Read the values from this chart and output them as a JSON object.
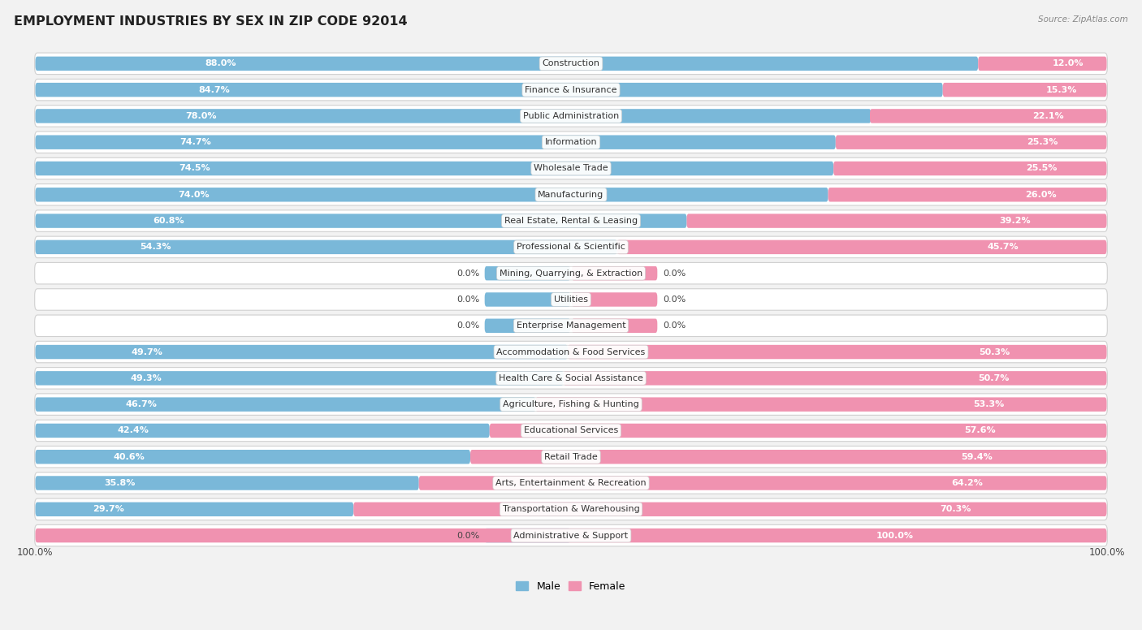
{
  "title": "EMPLOYMENT INDUSTRIES BY SEX IN ZIP CODE 92014",
  "source": "Source: ZipAtlas.com",
  "male_color": "#7ab8d9",
  "female_color": "#f092b0",
  "bg_color": "#f2f2f2",
  "row_bg": "#ffffff",
  "row_border": "#d0d0d0",
  "categories": [
    "Construction",
    "Finance & Insurance",
    "Public Administration",
    "Information",
    "Wholesale Trade",
    "Manufacturing",
    "Real Estate, Rental & Leasing",
    "Professional & Scientific",
    "Mining, Quarrying, & Extraction",
    "Utilities",
    "Enterprise Management",
    "Accommodation & Food Services",
    "Health Care & Social Assistance",
    "Agriculture, Fishing & Hunting",
    "Educational Services",
    "Retail Trade",
    "Arts, Entertainment & Recreation",
    "Transportation & Warehousing",
    "Administrative & Support"
  ],
  "male_pct": [
    88.0,
    84.7,
    78.0,
    74.7,
    74.5,
    74.0,
    60.8,
    54.3,
    0.0,
    0.0,
    0.0,
    49.7,
    49.3,
    46.7,
    42.4,
    40.6,
    35.8,
    29.7,
    0.0
  ],
  "female_pct": [
    12.0,
    15.3,
    22.1,
    25.3,
    25.5,
    26.0,
    39.2,
    45.7,
    0.0,
    0.0,
    0.0,
    50.3,
    50.7,
    53.3,
    57.6,
    59.4,
    64.2,
    70.3,
    100.0
  ],
  "legend_male": "Male",
  "legend_female": "Female",
  "zero_stub": 8.0
}
